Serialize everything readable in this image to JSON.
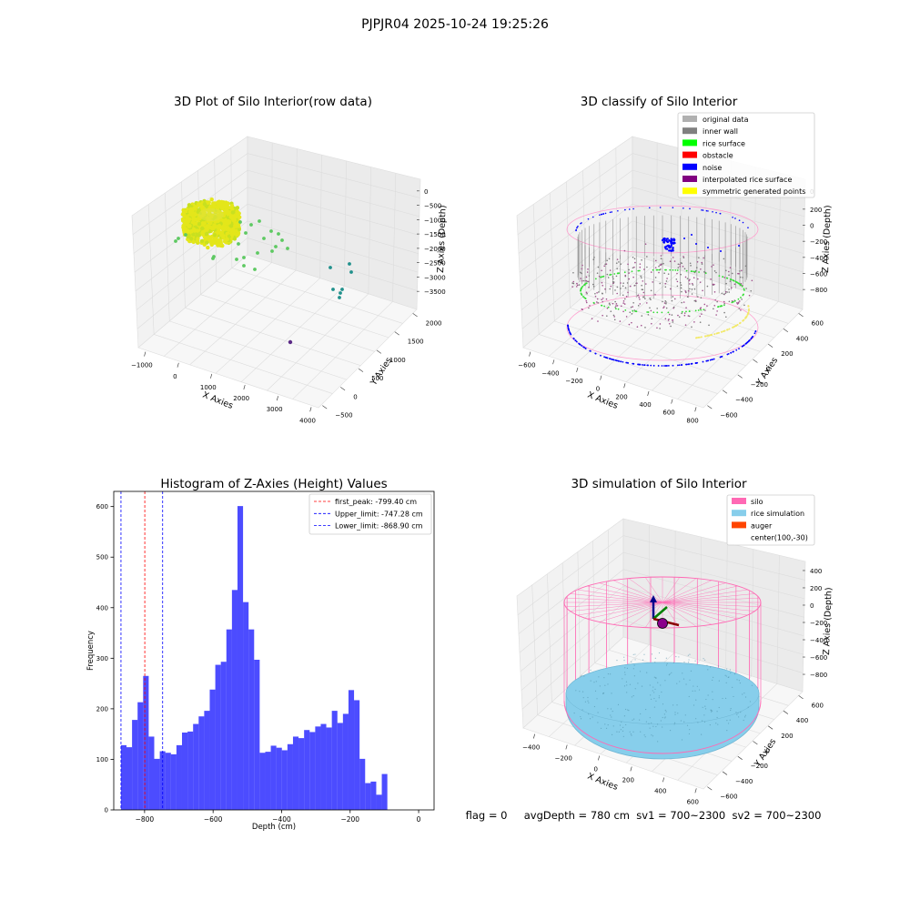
{
  "suptitle": "PJPJR04 2025-10-24 19:25:26",
  "status_line": "flag = 0     avgDepth = 780 cm  sv1 = 700~2300  sv2 = 700~2300",
  "colors": {
    "scatter_yellow": "#e4e61a",
    "scatter_green": "#5ec962",
    "scatter_teal": "#21918c",
    "scatter_purple": "#5b2a86",
    "hist_bar": "#0000ff",
    "peak_line": "#ff0000",
    "limit_line": "#0000ff",
    "silo_pink": "#ff69b4",
    "rice_blue": "#87ceeb",
    "auger": "#ff4500"
  },
  "chart_data": [
    {
      "type": "scatter",
      "title": "3D Plot of Silo Interior(row data)",
      "xlabel": "X Axies",
      "ylabel": "Y Axies",
      "zlabel": "Z Axies (Depth)",
      "x_ticks": [
        "−1000",
        "0",
        "1000",
        "2000",
        "3000",
        "4000"
      ],
      "y_ticks": [
        "2000",
        "1500",
        "1000",
        "500",
        "0",
        "−500"
      ],
      "z_ticks": [
        "0",
        "−500",
        "−1000",
        "−1500",
        "−2000",
        "−2500",
        "−3000",
        "−3500"
      ]
    },
    {
      "type": "scatter",
      "title": "3D classify of Silo Interior",
      "xlabel": "X Axies",
      "ylabel": "Y Axies",
      "zlabel": "Z Axies (Depth)",
      "x_ticks": [
        "−600",
        "−400",
        "−200",
        "0",
        "200",
        "400",
        "600",
        "800"
      ],
      "y_ticks": [
        "600",
        "400",
        "200",
        "0",
        "−200",
        "−400",
        "−600"
      ],
      "z_ticks": [
        "200",
        "0",
        "−200",
        "−400",
        "−600",
        "−800"
      ],
      "z_top_partial": "0",
      "legend_position": "top-right",
      "legend": [
        {
          "label": "original data",
          "color": "#b0b0b0"
        },
        {
          "label": "inner wall",
          "color": "#808080"
        },
        {
          "label": "rice surface",
          "color": "#00ff00"
        },
        {
          "label": "obstacle",
          "color": "#ff0000"
        },
        {
          "label": "noise",
          "color": "#0000ff"
        },
        {
          "label": "interpolated rice surface",
          "color": "#800080"
        },
        {
          "label": "symmetric generated points",
          "color": "#ffff00"
        }
      ]
    },
    {
      "type": "bar",
      "title": "Histogram of Z-Axies (Height) Values",
      "xlabel": "Depth (cm)",
      "ylabel": "Frequency",
      "xlim": [
        -890,
        45
      ],
      "ylim": [
        0,
        630
      ],
      "x_ticks": [
        -800,
        -600,
        -400,
        -200,
        0
      ],
      "x_tick_labels": [
        "−800",
        "−600",
        "−400",
        "−200",
        "0"
      ],
      "y_ticks": [
        0,
        100,
        200,
        300,
        400,
        500,
        600
      ],
      "bin_start": -869,
      "bin_width": 16.2,
      "values": [
        128,
        124,
        178,
        213,
        265,
        145,
        101,
        116,
        113,
        110,
        128,
        153,
        155,
        170,
        185,
        196,
        238,
        287,
        293,
        357,
        435,
        601,
        411,
        357,
        297,
        113,
        115,
        127,
        123,
        118,
        130,
        145,
        142,
        158,
        154,
        165,
        170,
        163,
        196,
        172,
        190,
        237,
        217,
        101,
        53,
        56,
        30,
        71
      ],
      "vlines": [
        {
          "label": "first_peak: -799.40 cm",
          "x": -799.4,
          "color": "#ff0000"
        },
        {
          "label": "Upper_limit: -747.28 cm",
          "x": -747.28,
          "color": "#0000ff"
        },
        {
          "label": "Lower_limit: -868.90 cm",
          "x": -868.9,
          "color": "#0000ff"
        }
      ],
      "legend_position": "top-right"
    },
    {
      "type": "scatter",
      "title": "3D simulation of Silo Interior",
      "xlabel": "X Axies",
      "ylabel": "Y Axies",
      "zlabel": "Z Axies (Depth)",
      "x_ticks": [
        "−400",
        "−200",
        "0",
        "200",
        "400",
        "600"
      ],
      "y_ticks": [
        "600",
        "400",
        "200",
        "0",
        "−200",
        "−400",
        "−600"
      ],
      "z_ticks": [
        "400",
        "200",
        "0",
        "−200",
        "−400",
        "−600",
        "−800"
      ],
      "legend_position": "top-right",
      "legend": [
        {
          "label": "silo",
          "color": "#ff69b4"
        },
        {
          "label": "rice simulation",
          "color": "#87ceeb"
        },
        {
          "label": "auger",
          "color": "#ff4500"
        },
        {
          "label": "center(100,-30)",
          "color": ""
        }
      ]
    }
  ]
}
